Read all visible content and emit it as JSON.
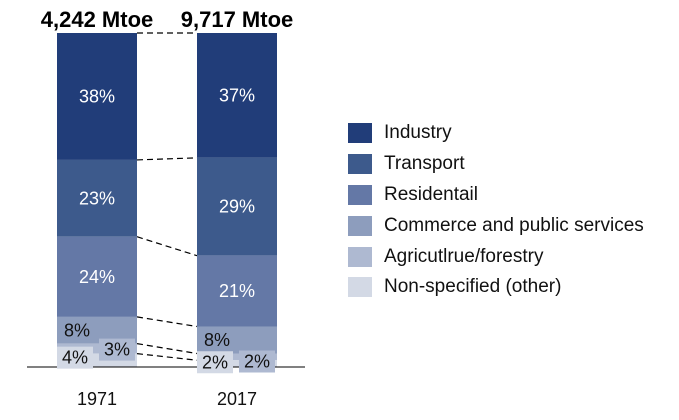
{
  "chart_data": {
    "type": "stacked-bar",
    "categories": [
      "1971",
      "2017"
    ],
    "totals": [
      "4,242 Mtoe",
      "9,717 Mtoe"
    ],
    "series": [
      {
        "name": "Industry",
        "values": [
          38,
          37
        ],
        "labels": [
          "38%",
          "37%"
        ],
        "color": "#213d79",
        "label_color": "#ffffff"
      },
      {
        "name": "Transport",
        "values": [
          23,
          29
        ],
        "labels": [
          "23%",
          "29%"
        ],
        "color": "#3d5a8c",
        "label_color": "#ffffff"
      },
      {
        "name": "Residentail",
        "values": [
          24,
          21
        ],
        "labels": [
          "24%",
          "21%"
        ],
        "color": "#6478a6",
        "label_color": "#ffffff"
      },
      {
        "name": "Commerce and public services",
        "values": [
          8,
          8
        ],
        "labels": [
          "8%",
          "8%"
        ],
        "color": "#8d9dbd",
        "label_color": "#111111"
      },
      {
        "name": "Agricutlrue/forestry",
        "values": [
          3,
          2
        ],
        "labels": [
          "3%",
          "2%"
        ],
        "color": "#aeb9d1",
        "label_color": "#111111"
      },
      {
        "name": "Non-specified (other)",
        "values": [
          4,
          2
        ],
        "labels": [
          "4%",
          "2%"
        ],
        "color": "#d3d9e5",
        "label_color": "#111111"
      }
    ],
    "connectors": "dashed",
    "legend": "right"
  }
}
